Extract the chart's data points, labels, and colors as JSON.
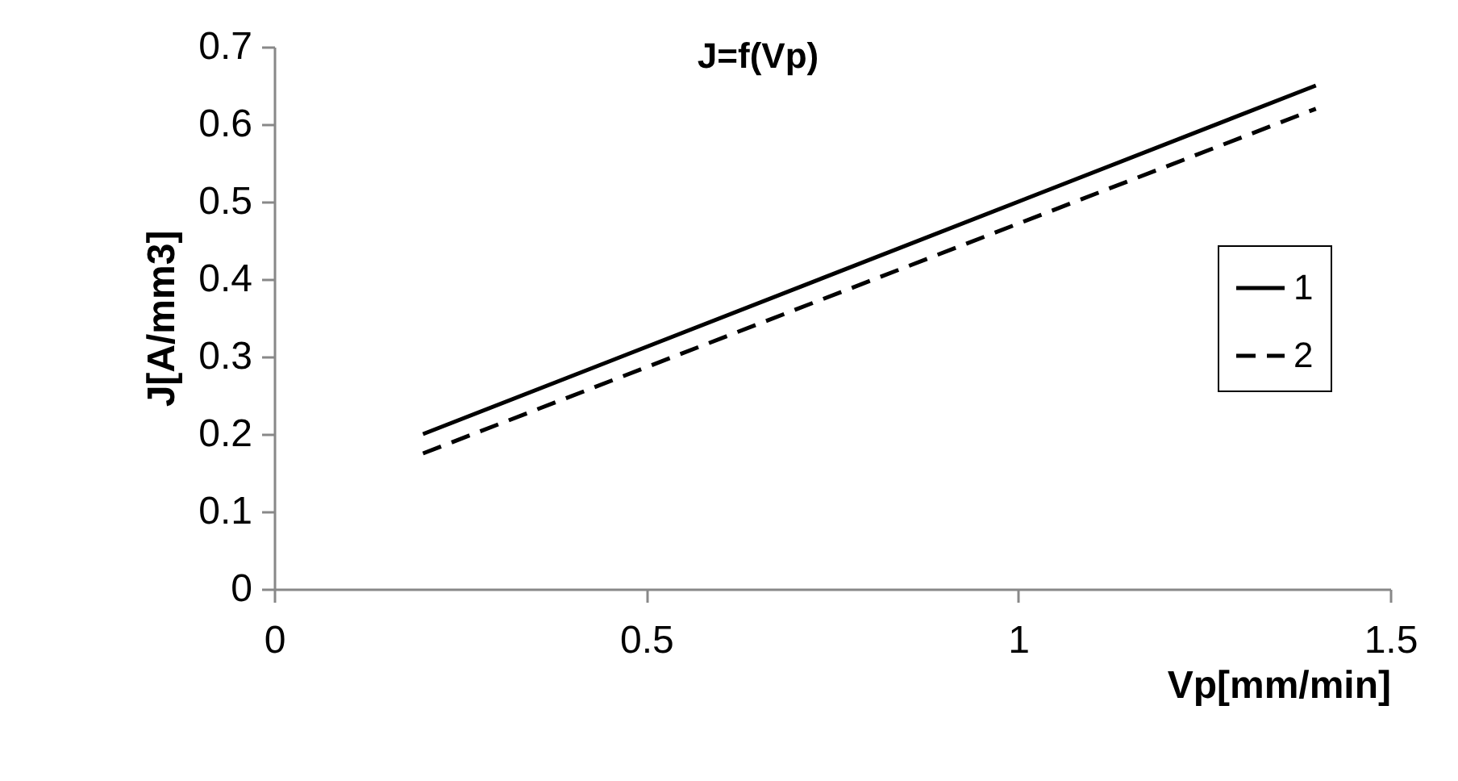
{
  "chart_data": {
    "type": "line",
    "title": "J=f(Vp)",
    "xlabel": "Vp[mm/min]",
    "ylabel": "J[A/mm3]",
    "xlim": [
      0,
      1.5
    ],
    "xticks": [
      0,
      0.5,
      1,
      1.5
    ],
    "ylim": [
      0,
      0.7
    ],
    "yticks": [
      0,
      0.1,
      0.2,
      0.3,
      0.4,
      0.5,
      0.6,
      0.7
    ],
    "grid": false,
    "legend": "right",
    "marker": "none",
    "x": [
      0.2,
      1.4
    ],
    "series": [
      {
        "name": "1",
        "color": "#000000",
        "line_style": "solid",
        "values": [
          0.2,
          0.65
        ]
      },
      {
        "name": "2",
        "color": "#000000",
        "line_style": "dashed",
        "values": [
          0.175,
          0.62
        ]
      }
    ]
  }
}
